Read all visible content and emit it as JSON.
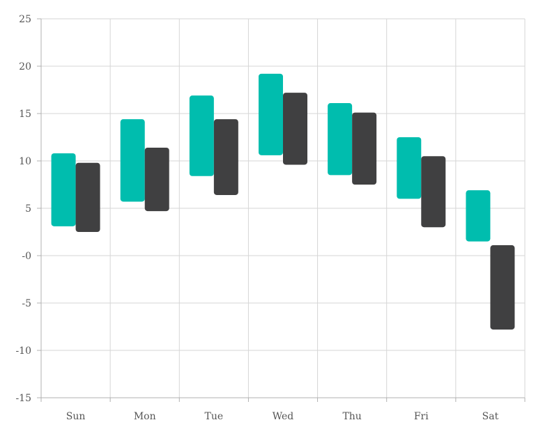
{
  "chart_data": {
    "type": "range-bar",
    "title": "",
    "xlabel": "",
    "ylabel": "",
    "categories": [
      "Sun",
      "Mon",
      "Tue",
      "Wed",
      "Thu",
      "Fri",
      "Sat"
    ],
    "ylim": [
      -15,
      25
    ],
    "yticks": [
      25,
      20,
      15,
      10,
      5,
      0,
      -5,
      -10,
      -15
    ],
    "ytick_labels": [
      "25",
      "20",
      "15",
      "10",
      "5",
      "-0",
      "-5",
      "-10",
      "-15"
    ],
    "grid": true,
    "legend": "none",
    "series": [
      {
        "color": "#00bdae",
        "low": [
          3.1,
          5.7,
          8.4,
          10.6,
          8.5,
          6.0,
          1.5
        ],
        "high": [
          10.8,
          14.4,
          16.9,
          19.2,
          16.1,
          12.5,
          6.9
        ]
      },
      {
        "color": "#404041",
        "low": [
          2.5,
          4.7,
          6.4,
          9.6,
          7.5,
          3.0,
          -7.8
        ],
        "high": [
          9.8,
          11.4,
          14.4,
          17.2,
          15.1,
          10.5,
          1.1
        ]
      }
    ]
  }
}
